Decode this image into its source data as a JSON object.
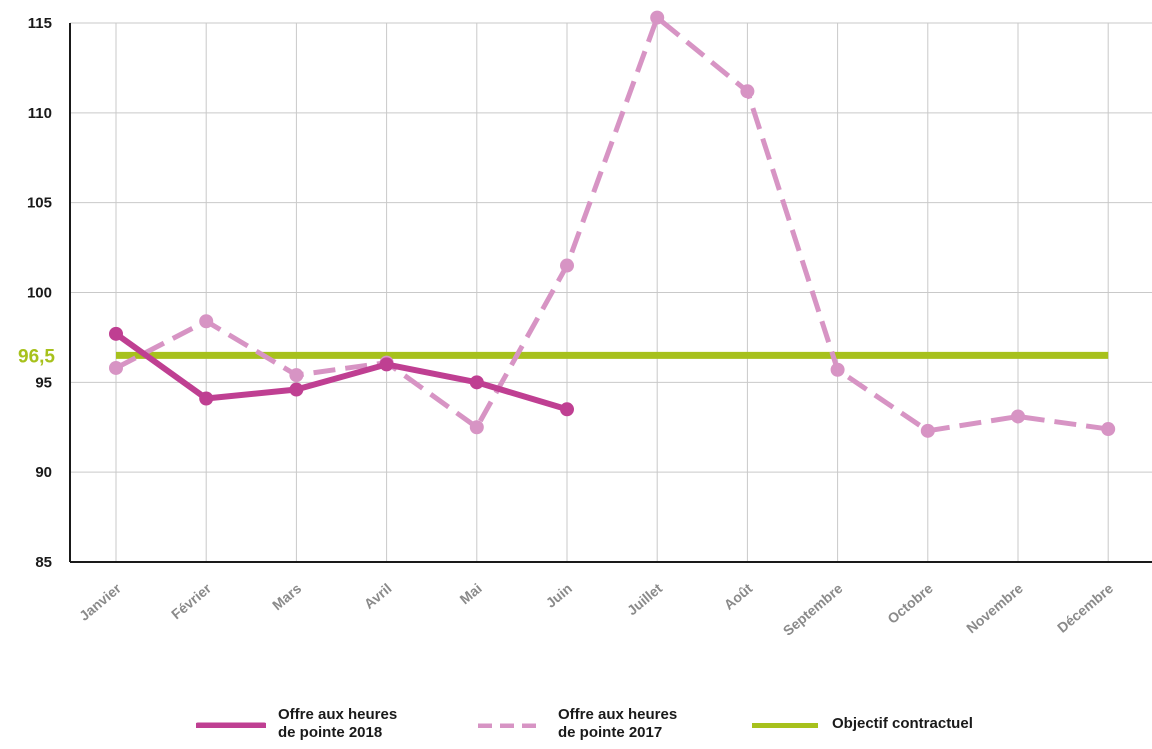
{
  "chart_data": {
    "type": "line",
    "categories": [
      "Janvier",
      "Février",
      "Mars",
      "Avril",
      "Mai",
      "Juin",
      "Juillet",
      "Août",
      "Septembre",
      "Octobre",
      "Novembre",
      "Décembre"
    ],
    "series": [
      {
        "name": "Offre aux heures de pointe 2018",
        "style": "solid",
        "color": "#bf3f92",
        "values": [
          97.7,
          94.1,
          94.6,
          96.0,
          95.0,
          93.5,
          null,
          null,
          null,
          null,
          null,
          null
        ]
      },
      {
        "name": "Offre aux heures de pointe 2017",
        "style": "dashed",
        "color": "#d794c4",
        "values": [
          95.8,
          98.4,
          95.4,
          96.1,
          92.5,
          101.5,
          115.3,
          111.2,
          95.7,
          92.3,
          93.1,
          92.4
        ]
      }
    ],
    "target": {
      "name": "Objectif contractuel",
      "value": 96.5,
      "label": "96,5",
      "color": "#a7c11c"
    },
    "ylim": [
      85,
      115
    ],
    "yticks": [
      85,
      90,
      95,
      100,
      105,
      110,
      115
    ],
    "grid": true,
    "legend_position": "bottom",
    "title": "",
    "xlabel": "",
    "ylabel": ""
  },
  "legend": {
    "items": [
      {
        "line1": "Offre aux heures",
        "line2": "de pointe 2018",
        "color": "#bf3f92",
        "style": "solid"
      },
      {
        "line1": "Offre aux heures",
        "line2": "de pointe 2017",
        "color": "#d794c4",
        "style": "dashed"
      },
      {
        "line1": "Objectif contractuel",
        "line2": "",
        "color": "#a7c11c",
        "style": "solid"
      }
    ]
  }
}
